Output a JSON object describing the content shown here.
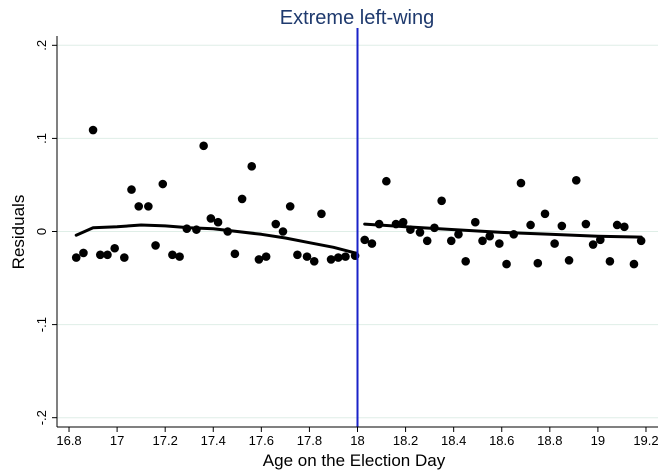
{
  "chart_data": {
    "type": "scatter",
    "title": "Extreme left-wing",
    "xlabel": "Age on the Election Day",
    "ylabel": "Residuals",
    "xlim": [
      16.75,
      19.25
    ],
    "ylim": [
      -0.21,
      0.21
    ],
    "xticks": [
      16.8,
      17,
      17.2,
      17.4,
      17.6,
      17.8,
      18,
      18.2,
      18.4,
      18.6,
      18.8,
      19,
      19.2
    ],
    "xtick_labels": [
      "16.8",
      "17",
      "17.2",
      "17.4",
      "17.6",
      "17.8",
      "18",
      "18.2",
      "18.4",
      "18.6",
      "18.8",
      "19",
      "19.2"
    ],
    "yticks": [
      -0.2,
      -0.1,
      0,
      0.1,
      0.2
    ],
    "ytick_labels": [
      "-.2",
      "-.1",
      "0",
      ".1",
      ".2"
    ],
    "grid": true,
    "cutoff": 18,
    "colors": {
      "points": "#000000",
      "fit": "#000000",
      "cutoff": "#1a22c8",
      "grid": "#dfeee7",
      "title": "#1f3a6e"
    },
    "points": [
      {
        "x": 16.83,
        "y": -0.028
      },
      {
        "x": 16.86,
        "y": -0.023
      },
      {
        "x": 16.9,
        "y": 0.109
      },
      {
        "x": 16.93,
        "y": -0.025
      },
      {
        "x": 16.96,
        "y": -0.025
      },
      {
        "x": 16.99,
        "y": -0.018
      },
      {
        "x": 17.03,
        "y": -0.028
      },
      {
        "x": 17.06,
        "y": 0.045
      },
      {
        "x": 17.09,
        "y": 0.027
      },
      {
        "x": 17.13,
        "y": 0.027
      },
      {
        "x": 17.16,
        "y": -0.015
      },
      {
        "x": 17.19,
        "y": 0.051
      },
      {
        "x": 17.23,
        "y": -0.025
      },
      {
        "x": 17.26,
        "y": -0.027
      },
      {
        "x": 17.29,
        "y": 0.003
      },
      {
        "x": 17.33,
        "y": 0.002
      },
      {
        "x": 17.36,
        "y": 0.092
      },
      {
        "x": 17.39,
        "y": 0.014
      },
      {
        "x": 17.42,
        "y": 0.01
      },
      {
        "x": 17.46,
        "y": 0.0
      },
      {
        "x": 17.49,
        "y": -0.024
      },
      {
        "x": 17.52,
        "y": 0.035
      },
      {
        "x": 17.56,
        "y": 0.07
      },
      {
        "x": 17.59,
        "y": -0.03
      },
      {
        "x": 17.62,
        "y": -0.027
      },
      {
        "x": 17.66,
        "y": 0.008
      },
      {
        "x": 17.69,
        "y": 0.0
      },
      {
        "x": 17.72,
        "y": 0.027
      },
      {
        "x": 17.75,
        "y": -0.025
      },
      {
        "x": 17.79,
        "y": -0.027
      },
      {
        "x": 17.82,
        "y": -0.032
      },
      {
        "x": 17.85,
        "y": 0.019
      },
      {
        "x": 17.89,
        "y": -0.03
      },
      {
        "x": 17.92,
        "y": -0.028
      },
      {
        "x": 17.95,
        "y": -0.027
      },
      {
        "x": 17.99,
        "y": -0.026
      },
      {
        "x": 18.03,
        "y": -0.009
      },
      {
        "x": 18.06,
        "y": -0.013
      },
      {
        "x": 18.09,
        "y": 0.008
      },
      {
        "x": 18.12,
        "y": 0.054
      },
      {
        "x": 18.16,
        "y": 0.008
      },
      {
        "x": 18.19,
        "y": 0.01
      },
      {
        "x": 18.22,
        "y": 0.002
      },
      {
        "x": 18.26,
        "y": -0.001
      },
      {
        "x": 18.29,
        "y": -0.01
      },
      {
        "x": 18.32,
        "y": 0.004
      },
      {
        "x": 18.35,
        "y": 0.033
      },
      {
        "x": 18.39,
        "y": -0.01
      },
      {
        "x": 18.42,
        "y": -0.003
      },
      {
        "x": 18.45,
        "y": -0.032
      },
      {
        "x": 18.49,
        "y": 0.01
      },
      {
        "x": 18.52,
        "y": -0.01
      },
      {
        "x": 18.55,
        "y": -0.005
      },
      {
        "x": 18.59,
        "y": -0.013
      },
      {
        "x": 18.62,
        "y": -0.035
      },
      {
        "x": 18.65,
        "y": -0.003
      },
      {
        "x": 18.68,
        "y": 0.052
      },
      {
        "x": 18.72,
        "y": 0.007
      },
      {
        "x": 18.75,
        "y": -0.034
      },
      {
        "x": 18.78,
        "y": 0.019
      },
      {
        "x": 18.82,
        "y": -0.013
      },
      {
        "x": 18.85,
        "y": 0.006
      },
      {
        "x": 18.88,
        "y": -0.031
      },
      {
        "x": 18.91,
        "y": 0.055
      },
      {
        "x": 18.95,
        "y": 0.008
      },
      {
        "x": 18.98,
        "y": -0.014
      },
      {
        "x": 19.01,
        "y": -0.009
      },
      {
        "x": 19.05,
        "y": -0.032
      },
      {
        "x": 19.08,
        "y": 0.007
      },
      {
        "x": 19.11,
        "y": 0.005
      },
      {
        "x": 19.15,
        "y": -0.035
      },
      {
        "x": 19.18,
        "y": -0.01
      }
    ],
    "fit_left": [
      {
        "x": 16.83,
        "y": -0.004
      },
      {
        "x": 16.9,
        "y": 0.004
      },
      {
        "x": 17.0,
        "y": 0.005
      },
      {
        "x": 17.1,
        "y": 0.007
      },
      {
        "x": 17.2,
        "y": 0.006
      },
      {
        "x": 17.3,
        "y": 0.004
      },
      {
        "x": 17.4,
        "y": 0.003
      },
      {
        "x": 17.5,
        "y": 0.0
      },
      {
        "x": 17.6,
        "y": -0.003
      },
      {
        "x": 17.7,
        "y": -0.007
      },
      {
        "x": 17.8,
        "y": -0.012
      },
      {
        "x": 17.9,
        "y": -0.017
      },
      {
        "x": 17.99,
        "y": -0.023
      }
    ],
    "fit_right": [
      {
        "x": 18.03,
        "y": 0.008
      },
      {
        "x": 18.2,
        "y": 0.005
      },
      {
        "x": 18.4,
        "y": 0.002
      },
      {
        "x": 18.6,
        "y": -0.001
      },
      {
        "x": 18.8,
        "y": -0.003
      },
      {
        "x": 19.0,
        "y": -0.005
      },
      {
        "x": 19.18,
        "y": -0.006
      }
    ]
  }
}
